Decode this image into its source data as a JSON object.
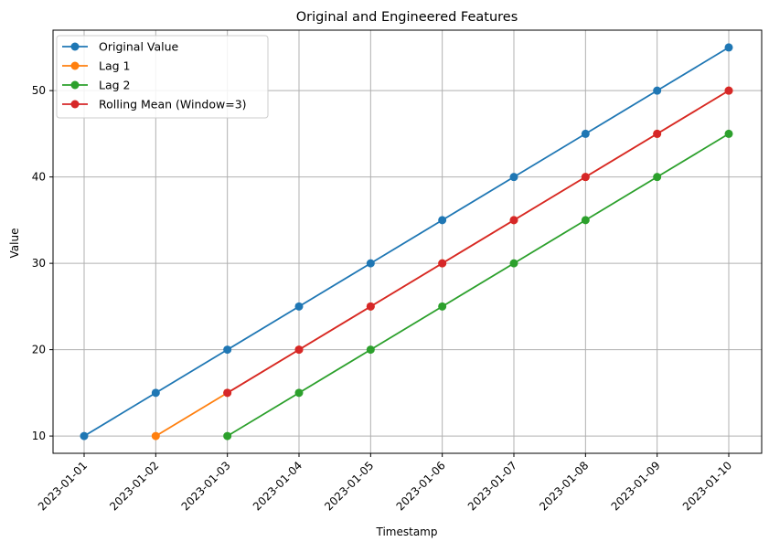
{
  "chart_data": {
    "type": "line",
    "title": "Original and Engineered Features",
    "xlabel": "Timestamp",
    "ylabel": "Value",
    "categories": [
      "2023-01-01",
      "2023-01-02",
      "2023-01-03",
      "2023-01-04",
      "2023-01-05",
      "2023-01-06",
      "2023-01-07",
      "2023-01-08",
      "2023-01-09",
      "2023-01-10"
    ],
    "ylim": [
      8,
      57
    ],
    "yticks": [
      10,
      20,
      30,
      40,
      50
    ],
    "grid": true,
    "legend_position": "upper-left",
    "marker": "circle",
    "series": [
      {
        "name": "Original Value",
        "color": "#1f77b4",
        "values": [
          10,
          15,
          20,
          25,
          30,
          35,
          40,
          45,
          50,
          55
        ]
      },
      {
        "name": "Lag 1",
        "color": "#ff7f0e",
        "values": [
          null,
          10,
          15,
          20,
          25,
          30,
          35,
          40,
          45,
          50
        ]
      },
      {
        "name": "Lag 2",
        "color": "#2ca02c",
        "values": [
          null,
          null,
          10,
          15,
          20,
          25,
          30,
          35,
          40,
          45
        ]
      },
      {
        "name": "Rolling Mean (Window=3)",
        "color": "#d62728",
        "values": [
          null,
          null,
          15,
          20,
          25,
          30,
          35,
          40,
          45,
          50
        ]
      }
    ]
  }
}
